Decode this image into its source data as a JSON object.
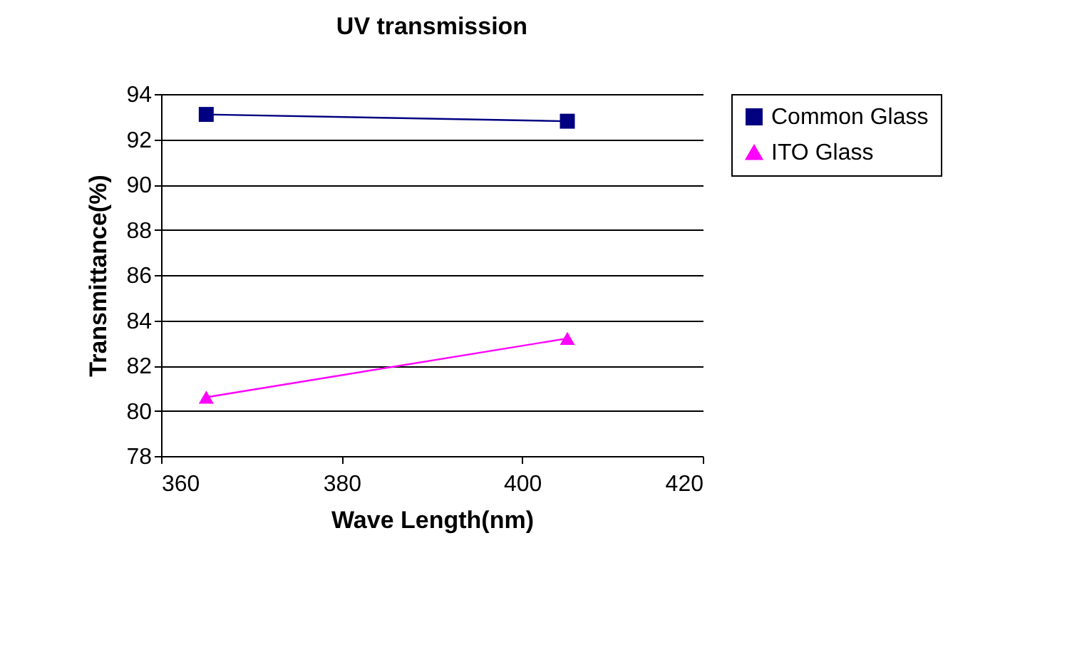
{
  "chart_data": {
    "type": "line",
    "title": "UV transmission",
    "xlabel": "Wave Length(nm)",
    "ylabel": "Transmittance(%)",
    "x": [
      365,
      405
    ],
    "series": [
      {
        "name": "Common Glass",
        "color": "#000080",
        "marker": "square",
        "values": [
          93.1,
          92.8
        ]
      },
      {
        "name": "ITO Glass",
        "color": "#ff00ff",
        "marker": "triangle",
        "values": [
          80.6,
          83.2
        ]
      }
    ],
    "xlim": [
      360,
      420
    ],
    "xticks": [
      360,
      380,
      400,
      420
    ],
    "ylim": [
      78,
      94
    ],
    "yticks": [
      78,
      80,
      82,
      84,
      86,
      88,
      90,
      92,
      94
    ],
    "grid": "y",
    "legend": "right",
    "line_style": "solid"
  }
}
